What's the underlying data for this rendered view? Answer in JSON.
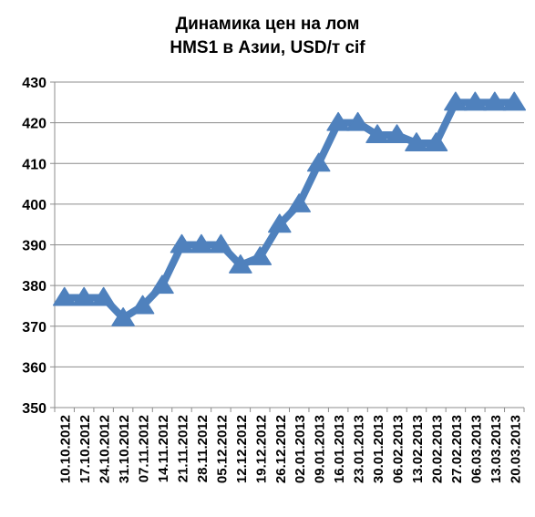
{
  "chart_data": {
    "type": "line",
    "title_line1": "Динамика цен на лом",
    "title_line2": "HMS1 в Азии, USD/т cif",
    "title": "Динамика цен на лом HMS1 в Азии, USD/т cif",
    "xlabel": "",
    "ylabel": "",
    "ylim": [
      350,
      430
    ],
    "yticks": [
      350,
      360,
      370,
      380,
      390,
      400,
      410,
      420,
      430
    ],
    "grid": true,
    "legend": "none",
    "colors": {
      "line": "#4F81BD"
    },
    "marker": "triangle",
    "categories": [
      "10.10.2012",
      "17.10.2012",
      "24.10.2012",
      "31.10.2012",
      "07.11.2012",
      "14.11.2012",
      "21.11.2012",
      "28.11.2012",
      "05.12.2012",
      "12.12.2012",
      "19.12.2012",
      "26.12.2012",
      "02.01.2013",
      "09.01.2013",
      "16.01.2013",
      "23.01.2013",
      "30.01.2013",
      "06.02.2013",
      "13.02.2013",
      "20.02.2013",
      "27.02.2013",
      "06.03.2013",
      "13.03.2013",
      "20.03.2013"
    ],
    "values": [
      377,
      377,
      377,
      372,
      375,
      380,
      390,
      390,
      390,
      385,
      387,
      395,
      400,
      410,
      420,
      420,
      417,
      417,
      415,
      415,
      425,
      425,
      425,
      425
    ]
  }
}
